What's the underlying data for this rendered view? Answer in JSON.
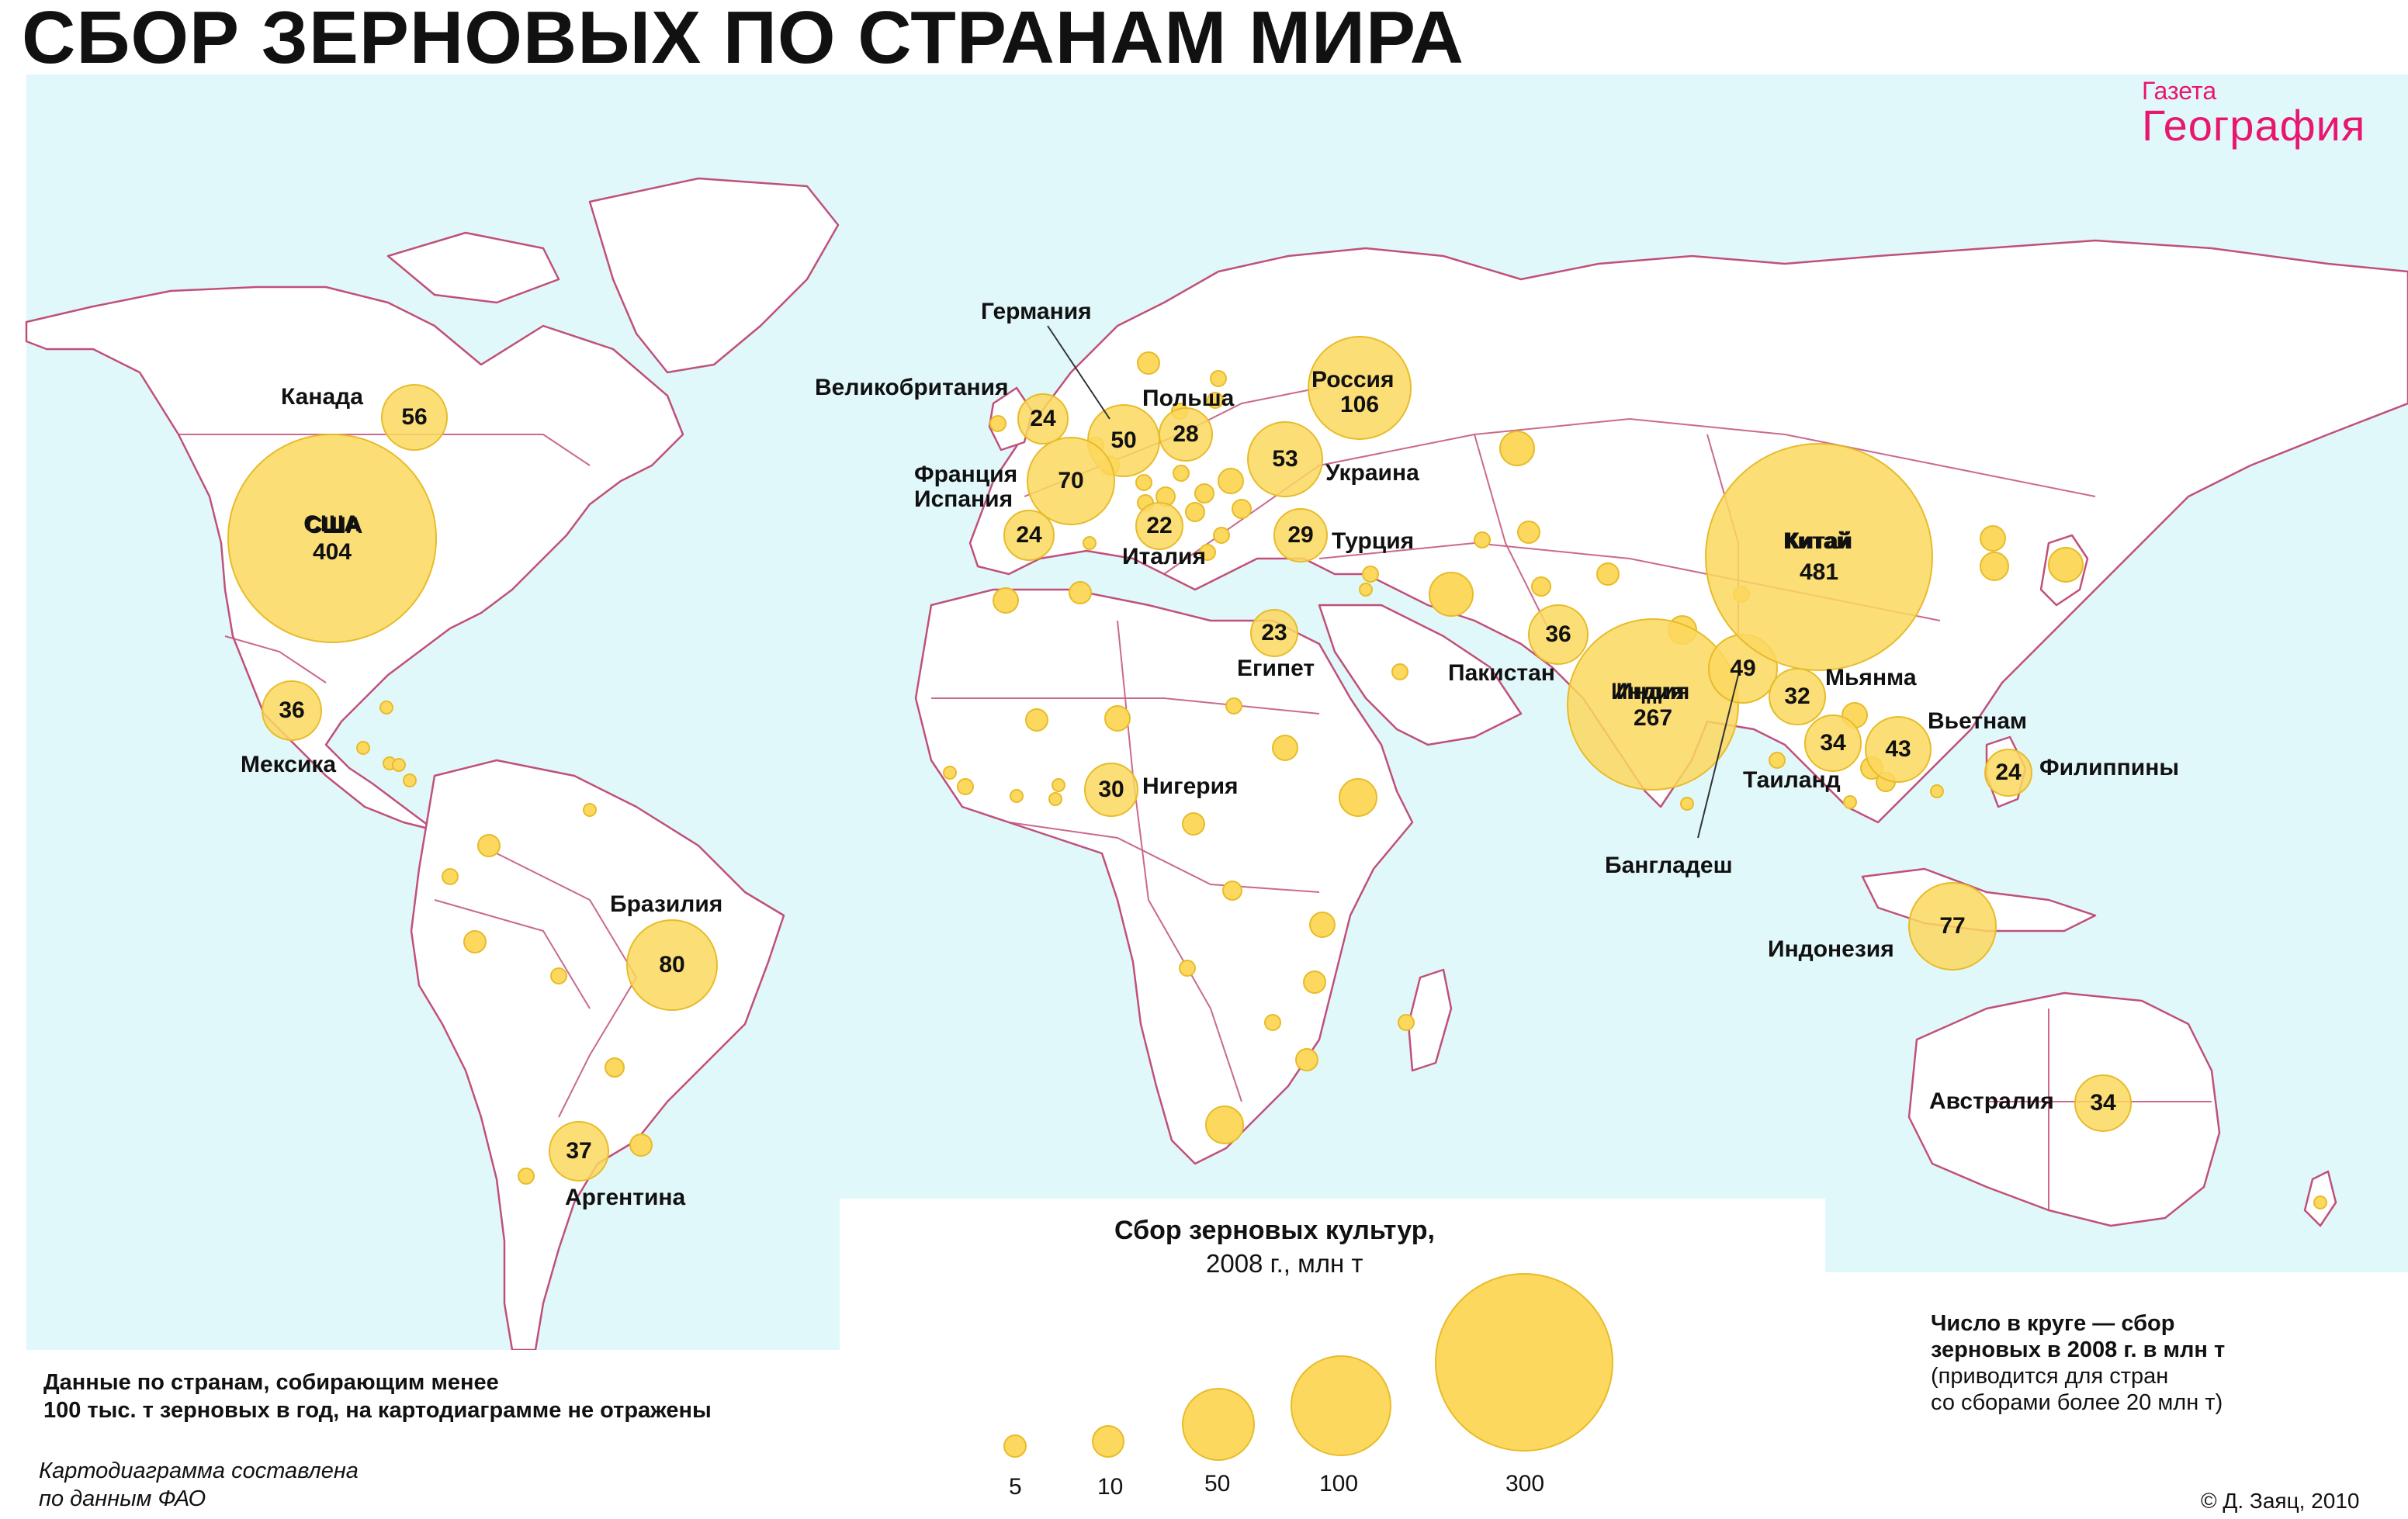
{
  "title": "СБОР ЗЕРНОВЫХ ПО СТРАНАМ МИРА",
  "logo": {
    "top": "Газета",
    "bottom": "География"
  },
  "colors": {
    "ocean": "#e1f8fb",
    "land": "#ffffff",
    "border": "#c0507a",
    "circle_fill": "#fcd85f",
    "circle_stroke": "#e7bc2a",
    "logo": "#e8166f"
  },
  "countries": [
    {
      "name": "Канада",
      "value": "56"
    },
    {
      "name": "США",
      "value": "404"
    },
    {
      "name": "Мексика",
      "value": "36"
    },
    {
      "name": "Бразилия",
      "value": "80"
    },
    {
      "name": "Аргентина",
      "value": "37"
    },
    {
      "name": "Великобритания",
      "value": "24"
    },
    {
      "name": "Германия",
      "value": "50"
    },
    {
      "name": "Польша",
      "value": "28"
    },
    {
      "name": "Франция",
      "value": "70"
    },
    {
      "name": "Испания",
      "value": "24"
    },
    {
      "name": "Италия",
      "value": "22"
    },
    {
      "name": "Россия",
      "value": "106"
    },
    {
      "name": "Украина",
      "value": "53"
    },
    {
      "name": "Турция",
      "value": "29"
    },
    {
      "name": "Египет",
      "value": "23"
    },
    {
      "name": "Нигерия",
      "value": "30"
    },
    {
      "name": "Пакистан",
      "value": "36"
    },
    {
      "name": "Индия",
      "value": "267"
    },
    {
      "name": "Бангладеш",
      "value": "49"
    },
    {
      "name": "Китай",
      "value": "481"
    },
    {
      "name": "Мьянма",
      "value": "32"
    },
    {
      "name": "Таиланд",
      "value": "34"
    },
    {
      "name": "Вьетнам",
      "value": "43"
    },
    {
      "name": "Филиппины",
      "value": "24"
    },
    {
      "name": "Индонезия",
      "value": "77"
    },
    {
      "name": "Австралия",
      "value": "34"
    }
  ],
  "legend": {
    "title": "Сбор зерновых культур,",
    "subtitle": "2008 г., млн т",
    "sizes": [
      "5",
      "10",
      "50",
      "100",
      "300"
    ]
  },
  "note_left": {
    "line1": "Данные по странам, собирающим менее",
    "line2": "100 тыс. т зерновых в год, на картодиаграмме не отражены"
  },
  "source": {
    "line1": "Картодиаграмма составлена",
    "line2": "по данным ФАО"
  },
  "note_right": {
    "line1": "Число в круге — сбор",
    "line2": "зерновых в 2008 г. в млн т",
    "line3": "(приводится для стран",
    "line4": "со сборами более 20 млн т)"
  },
  "copyright": "© Д. Заяц, 2010"
}
